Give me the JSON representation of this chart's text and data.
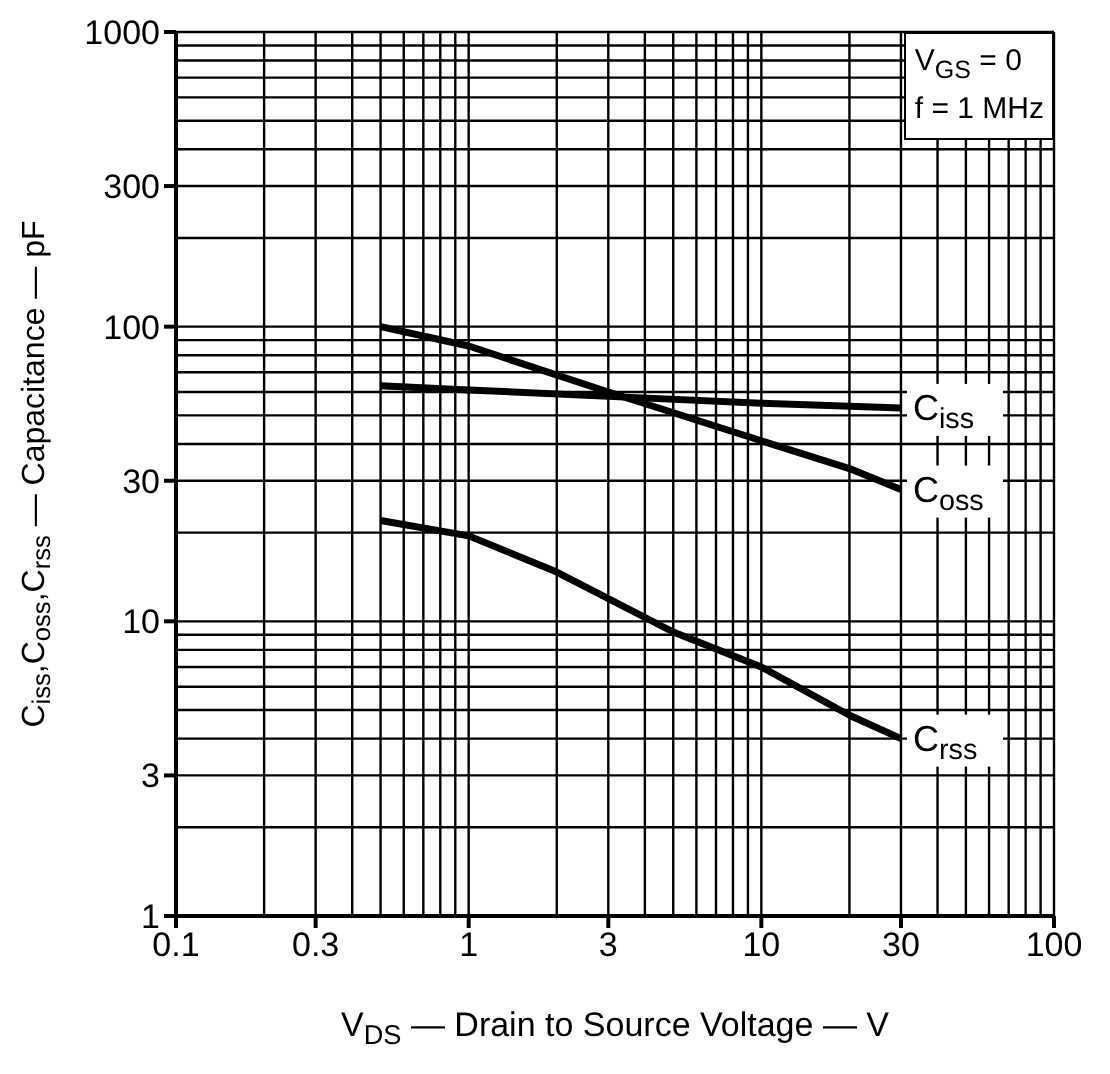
{
  "chart_data": {
    "type": "line",
    "xlabel": "V$_{DS}$ — Drain to Source Voltage — V",
    "ylabel": "C$_{iss}$,C$_{oss}$,C$_{rss}$ — Capacitance — pF",
    "log": "xy",
    "xlim": [
      0.1,
      100
    ],
    "xticks": [
      0.1,
      0.3,
      1,
      3,
      10,
      30,
      100
    ],
    "ylim": [
      1,
      1000
    ],
    "yticks": [
      1,
      3,
      10,
      30,
      100,
      300,
      1000
    ],
    "grid": true,
    "marker": "none",
    "line_style": "solid",
    "annotations": [
      "V$_{GS}$ = 0",
      "f = 1 MHz"
    ],
    "series": [
      {
        "name": "C$_{iss}$",
        "color": "#000000",
        "x": [
          0.5,
          1,
          3,
          10,
          30
        ],
        "values": [
          63,
          61,
          58,
          55,
          53
        ]
      },
      {
        "name": "C$_{oss}$",
        "color": "#000000",
        "x": [
          0.5,
          1,
          3,
          10,
          20,
          30
        ],
        "values": [
          100,
          86,
          60,
          41,
          33,
          28
        ]
      },
      {
        "name": "C$_{rss}$",
        "color": "#000000",
        "x": [
          0.5,
          1,
          2,
          5,
          10,
          20,
          30
        ],
        "values": [
          22,
          19.5,
          14.7,
          9.2,
          7,
          4.8,
          4
        ]
      }
    ]
  }
}
